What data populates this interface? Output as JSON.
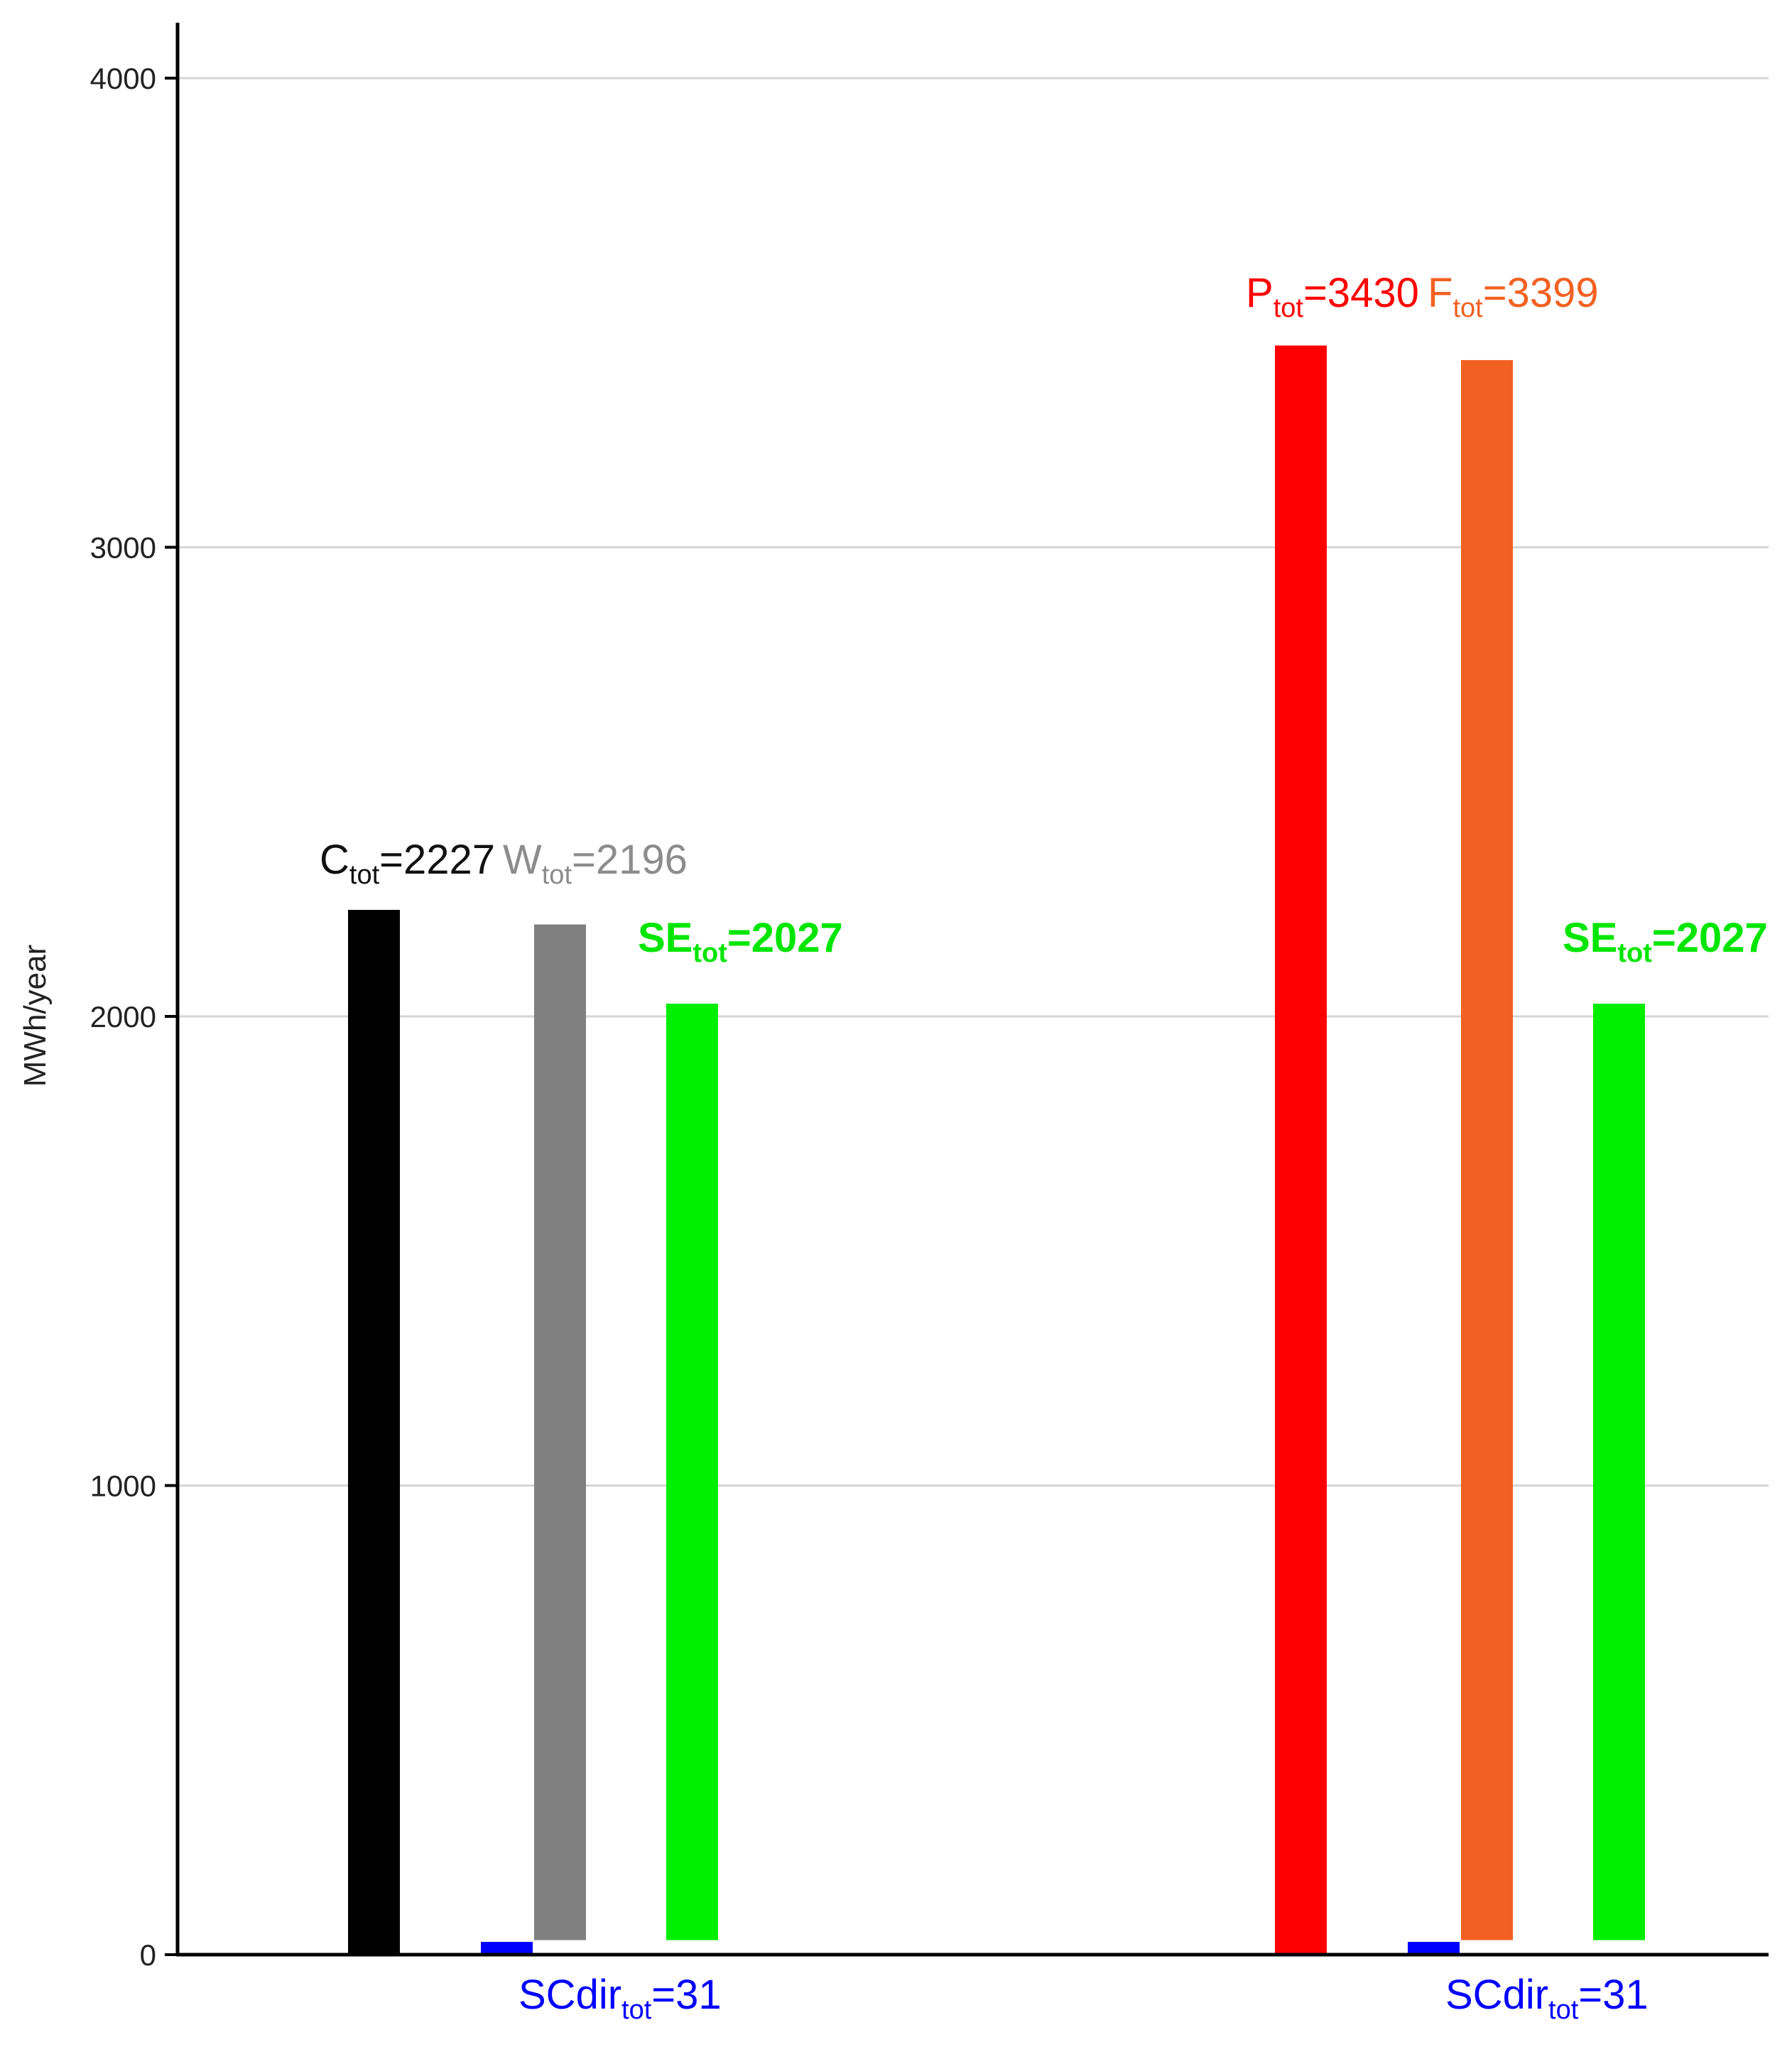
{
  "chart_data": {
    "type": "bar",
    "title": "",
    "xlabel": "",
    "ylabel": "MWh/year",
    "ylim": [
      0,
      4100
    ],
    "yticks": [
      0,
      1000,
      2000,
      3000,
      4000
    ],
    "grid": true,
    "groups": [
      {
        "bars": [
          {
            "key": "C",
            "value": 2227,
            "base": 0,
            "color": "#000000",
            "label": {
              "main": "C",
              "sub": "tot",
              "rest": "=2227",
              "color": "#111111",
              "bold": false
            }
          },
          {
            "key": "SCdir",
            "value": 31,
            "base": 0,
            "color": "#0000ff",
            "label": {
              "main": "SCdir",
              "sub": "tot",
              "rest": "=31",
              "color": "#0000ff",
              "bold": false
            }
          },
          {
            "key": "W",
            "value": 2196,
            "base": 31,
            "color": "#808080",
            "label": {
              "main": "W",
              "sub": "tot",
              "rest": "=2196",
              "color": "#8c8c8c",
              "bold": false
            }
          },
          {
            "key": "SE",
            "value": 2027,
            "base": 31,
            "color": "#00ee00",
            "label": {
              "main": "SE",
              "sub": "tot",
              "rest": "=2027",
              "color": "#00e600",
              "bold": true
            }
          }
        ]
      },
      {
        "bars": [
          {
            "key": "P",
            "value": 3430,
            "base": 0,
            "color": "#ff0000",
            "label": {
              "main": "P",
              "sub": "tot",
              "rest": "=3430",
              "color": "#ff0000",
              "bold": false
            }
          },
          {
            "key": "SCdir",
            "value": 31,
            "base": 0,
            "color": "#0000ff",
            "label": {
              "main": "SCdir",
              "sub": "tot",
              "rest": "=31",
              "color": "#0000ff",
              "bold": false
            }
          },
          {
            "key": "F",
            "value": 3399,
            "base": 31,
            "color": "#f26122",
            "label": {
              "main": "F",
              "sub": "tot",
              "rest": "=3399",
              "color": "#f26122",
              "bold": false
            }
          },
          {
            "key": "SE",
            "value": 2027,
            "base": 31,
            "color": "#00ee00",
            "label": {
              "main": "SE",
              "sub": "tot",
              "rest": "=2027",
              "color": "#00e600",
              "bold": true
            }
          }
        ]
      }
    ]
  }
}
